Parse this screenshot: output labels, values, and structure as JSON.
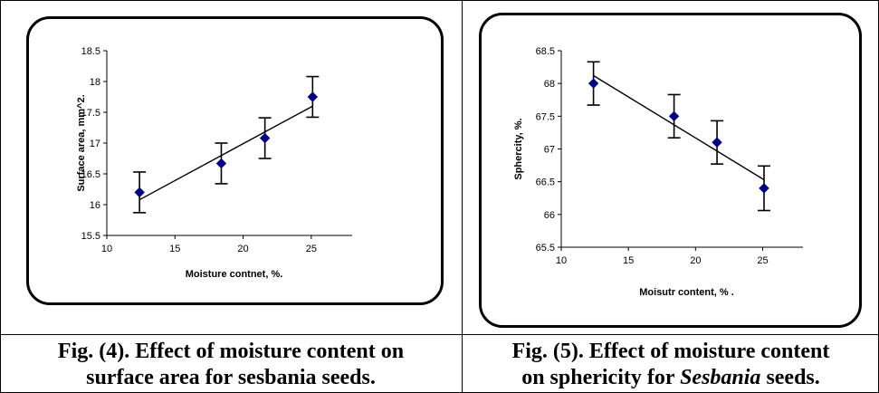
{
  "figures": [
    {
      "caption": {
        "line1": "Fig. (4). Effect of moisture content on",
        "line2": "surface area for sesbania seeds."
      }
    },
    {
      "caption": {
        "line1": "Fig. (5). Effect of moisture content",
        "line2_prefix": "on sphericity for ",
        "line2_italic": "Sesbania",
        "line2_suffix": " seeds."
      }
    }
  ],
  "chart_data": [
    {
      "type": "scatter",
      "title": "",
      "xlabel": "Moisture contnet, %.",
      "ylabel": "Surface area, mm^2.",
      "xlim": [
        10,
        28
      ],
      "ylim": [
        15.5,
        18.5
      ],
      "x_ticks": [
        "10",
        "15",
        "20",
        "25"
      ],
      "y_ticks": [
        "15.5",
        "16",
        "16.5",
        "17",
        "17.5",
        "18",
        "18.5"
      ],
      "marker_color": "#000080",
      "points": [
        {
          "x": 12.4,
          "y": 16.2,
          "err": 0.33
        },
        {
          "x": 18.4,
          "y": 16.67,
          "err": 0.33
        },
        {
          "x": 21.6,
          "y": 17.08,
          "err": 0.33
        },
        {
          "x": 25.1,
          "y": 17.75,
          "err": 0.33
        }
      ],
      "trendline": {
        "x": [
          12.4,
          25.1
        ],
        "y": [
          16.08,
          17.6
        ]
      }
    },
    {
      "type": "scatter",
      "title": "",
      "xlabel": "Moisutr content, % .",
      "ylabel": "Sphercity, %.",
      "xlim": [
        10,
        28
      ],
      "ylim": [
        65.5,
        68.5
      ],
      "x_ticks": [
        "10",
        "15",
        "20",
        "25"
      ],
      "y_ticks": [
        "65.5",
        "66",
        "66.5",
        "67",
        "67.5",
        "68",
        "68.5"
      ],
      "marker_color": "#000080",
      "points": [
        {
          "x": 12.4,
          "y": 68.0,
          "err": 0.33
        },
        {
          "x": 18.4,
          "y": 67.5,
          "err": 0.33
        },
        {
          "x": 21.6,
          "y": 67.1,
          "err": 0.33
        },
        {
          "x": 25.1,
          "y": 66.4,
          "err": 0.34
        }
      ],
      "trendline": {
        "x": [
          12.4,
          25.1
        ],
        "y": [
          68.12,
          66.53
        ]
      }
    }
  ]
}
